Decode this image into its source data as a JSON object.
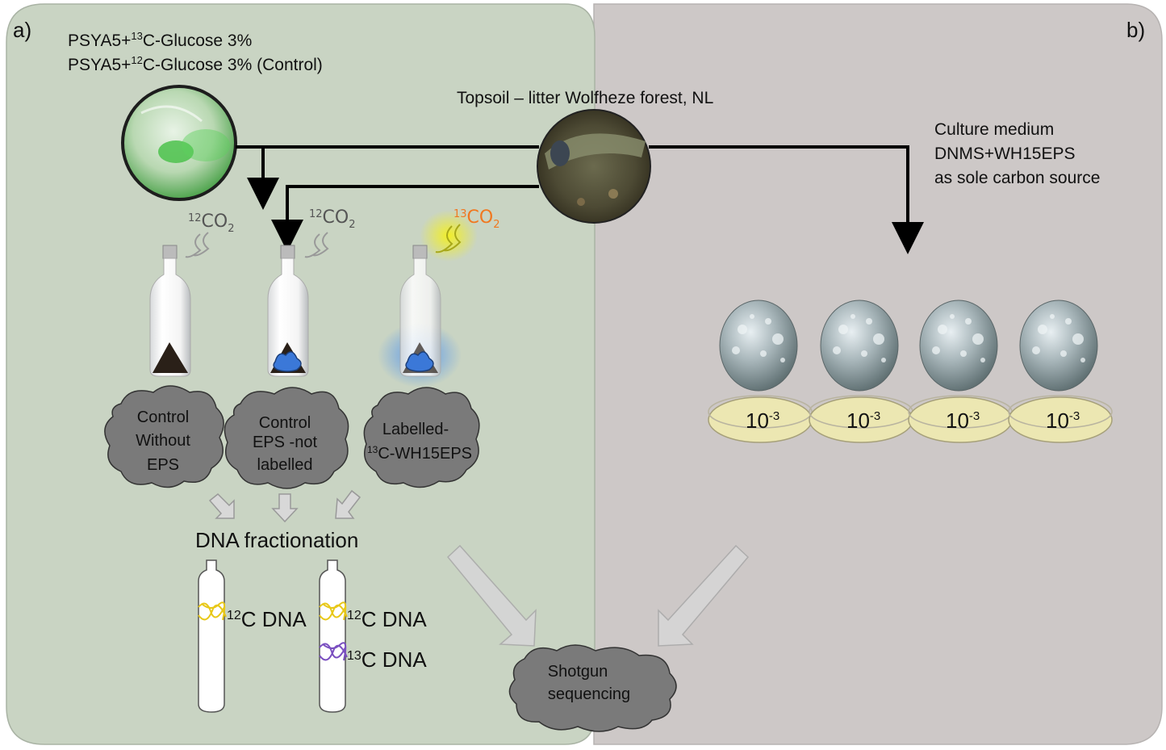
{
  "panels": {
    "a_label": "a)",
    "b_label": "b)"
  },
  "substrates": {
    "line1_prefix": "PSYA5+",
    "line1_sup": "13",
    "line1_suffix": "C-Glucose 3%",
    "line2_prefix": "PSYA5+",
    "line2_sup": "12",
    "line2_suffix": "C-Glucose 3% (Control)"
  },
  "soil": {
    "label": "Topsoil – litter Wolfheze forest, NL"
  },
  "culture": {
    "line1": "Culture medium",
    "line2": "DNMS+WH15EPS",
    "line3": "as sole carbon source"
  },
  "co2": {
    "bottle1_sup": "12",
    "bottle1_main": "CO",
    "bottle1_sub": "2",
    "bottle2_sup": "12",
    "bottle2_main": "CO",
    "bottle2_sub": "2",
    "bottle3_sup": "13",
    "bottle3_main": "CO",
    "bottle3_sub": "2"
  },
  "treatments": {
    "t1_line1": "Control",
    "t1_line2": "Without",
    "t1_line3": "EPS",
    "t2_line1": "Control",
    "t2_line2": "EPS -not",
    "t2_line3": "labelled",
    "t3_line1": "Labelled-",
    "t3_sup": "13",
    "t3_line2": "C-WH15EPS"
  },
  "fractionation": {
    "title": "DNA fractionation",
    "tube1_sup": "12",
    "tube1_label": "C DNA",
    "tube2_top_sup": "12",
    "tube2_top_label": "C DNA",
    "tube2_bottom_sup": "13",
    "tube2_bottom_label": "C DNA"
  },
  "sequencing": {
    "line1": "Shotgun",
    "line2": "sequencing"
  },
  "plates": {
    "dilution_base": "10",
    "dilution_exp": "-3",
    "count": 4
  },
  "colors": {
    "panel_a_bg": "#c9d4c3",
    "panel_b_bg": "#cdc8c7",
    "cloud": "#7a7a7a",
    "label_13co2": "#f07820",
    "glow_yellow": "#f2ee30",
    "glow_blue": "#5aa0f0",
    "dna_yellow": "#e8c818",
    "dna_purple": "#7a4fc0"
  }
}
